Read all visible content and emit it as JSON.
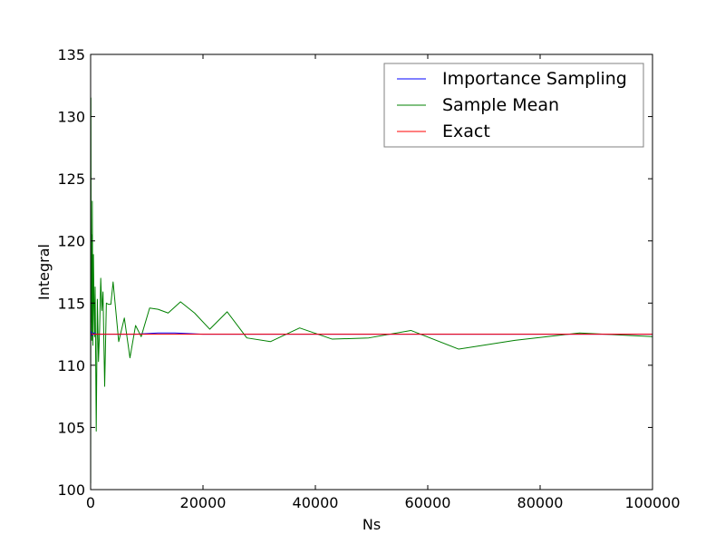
{
  "chart_data": {
    "type": "line",
    "title": "",
    "xlabel": "Ns",
    "ylabel": "Integral",
    "xlim": [
      0,
      100000
    ],
    "ylim": [
      100,
      135
    ],
    "x_ticks": [
      0,
      20000,
      40000,
      60000,
      80000,
      100000
    ],
    "x_tick_labels": [
      "0",
      "20000",
      "40000",
      "60000",
      "80000",
      "100000"
    ],
    "y_ticks": [
      100,
      105,
      110,
      115,
      120,
      125,
      130,
      135
    ],
    "y_tick_labels": [
      "100",
      "105",
      "110",
      "115",
      "120",
      "125",
      "130",
      "135"
    ],
    "grid": false,
    "legend_position": "top-right",
    "series": [
      {
        "name": "Importance Sampling",
        "color": "#0000ff",
        "x": [
          10,
          100,
          300,
          600,
          1000,
          2000,
          4000,
          8000,
          12000,
          15000,
          20000,
          30000,
          40000,
          50000,
          60000,
          70000,
          80000,
          90000,
          100000
        ],
        "y": [
          112.3,
          112.7,
          112.4,
          112.6,
          112.5,
          112.5,
          112.5,
          112.5,
          112.6,
          112.6,
          112.5,
          112.5,
          112.5,
          112.5,
          112.5,
          112.5,
          112.5,
          112.5,
          112.5
        ]
      },
      {
        "name": "Sample Mean",
        "color": "#008000",
        "x": [
          10,
          50,
          100,
          150,
          200,
          300,
          400,
          500,
          600,
          700,
          800,
          900,
          1000,
          1200,
          1400,
          1600,
          1800,
          2000,
          2200,
          2500,
          2800,
          3200,
          3600,
          4000,
          5000,
          6000,
          7000,
          8000,
          9000,
          10500,
          12000,
          13800,
          16000,
          18500,
          21200,
          24300,
          27800,
          32000,
          37200,
          43000,
          49500,
          57000,
          65500,
          75500,
          87000,
          100000
        ],
        "y": [
          100.5,
          131.5,
          113.5,
          120.5,
          112.0,
          123.2,
          111.6,
          118.9,
          115.1,
          112.3,
          116.3,
          110.5,
          104.7,
          115.3,
          110.3,
          112.9,
          117.0,
          114.4,
          115.9,
          108.3,
          115.0,
          114.9,
          114.9,
          116.7,
          111.9,
          113.8,
          110.6,
          113.2,
          112.3,
          114.6,
          114.5,
          114.2,
          115.1,
          114.2,
          112.9,
          114.3,
          112.2,
          111.9,
          113.0,
          112.1,
          112.2,
          112.8,
          111.3,
          112.0,
          112.6,
          112.3
        ]
      },
      {
        "name": "Exact",
        "color": "#ff0000",
        "x": [
          0,
          100000
        ],
        "y": [
          112.5,
          112.5
        ]
      }
    ]
  }
}
